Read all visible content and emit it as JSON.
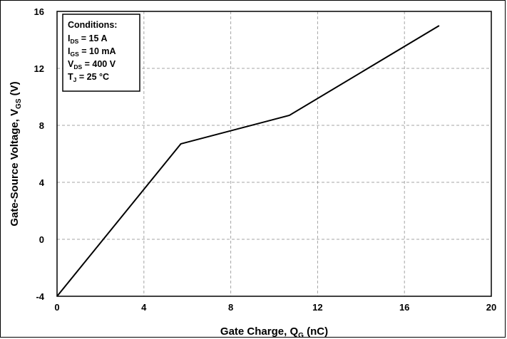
{
  "chart_data": {
    "type": "line",
    "title": "",
    "xlabel": {
      "main": "Gate Charge, Q",
      "sub": "G",
      "unit": " (nC)"
    },
    "ylabel": {
      "main": "Gate-Source Voltage, V",
      "sub": "GS",
      "unit": " (V)"
    },
    "xlim": [
      0,
      20
    ],
    "ylim": [
      -4,
      16
    ],
    "x_ticks": [
      0,
      4,
      8,
      12,
      16,
      20
    ],
    "y_ticks": [
      -4,
      0,
      4,
      8,
      12,
      16
    ],
    "grid": true,
    "line_color": "#000000",
    "grid_color": "#a6a6a6",
    "series": [
      {
        "x": [
          0,
          5.7,
          10.7,
          17.6
        ],
        "y": [
          -4,
          6.7,
          8.7,
          15.0
        ]
      }
    ],
    "annotation": {
      "heading": "Conditions:",
      "lines": [
        {
          "main": "I",
          "sub": "DS",
          "rest": " = 15 A"
        },
        {
          "main": "I",
          "sub": "GS",
          "rest": " = 10 mA"
        },
        {
          "main": "V",
          "sub": "DS",
          "rest": " =  400 V"
        },
        {
          "main": "T",
          "sub": "J",
          "rest": " = 25 °C"
        }
      ]
    }
  }
}
